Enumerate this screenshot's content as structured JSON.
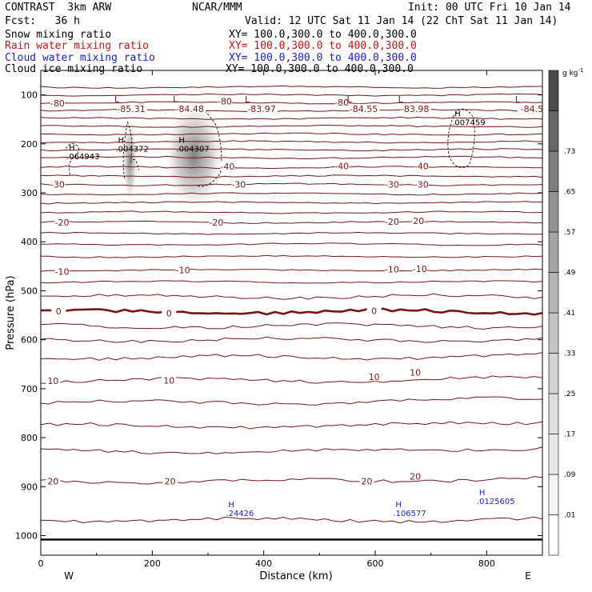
{
  "header": {
    "project": "CONTRAST",
    "model": "3km ARW",
    "center": "NCAR/MMM",
    "init": "Init: 00 UTC Fri 10 Jan 14",
    "fcst_label": "Fcst:",
    "fcst_value": "36 h",
    "valid": "Valid: 12 UTC Sat 11 Jan 14 (22 ChT Sat 11 Jan 14)"
  },
  "fields": [
    {
      "name": "Snow mixing ratio",
      "xy": "XY= 100.0,300.0 to 400.0,300.0",
      "color": "#000000"
    },
    {
      "name": "Rain water mixing ratio",
      "xy": "XY= 100.0,300.0 to 400.0,300.0",
      "color": "#d01010"
    },
    {
      "name": "Cloud water mixing ratio",
      "xy": "XY= 100.0,300.0 to 400.0,300.0",
      "color": "#1a1ad0"
    },
    {
      "name": "Cloud ice mixing ratio",
      "xy": "XY= 100.0,300.0 to 400.0,300.0",
      "color": "#000000"
    }
  ],
  "chart_data": {
    "type": "contour cross-section",
    "xlabel": "Distance (km)",
    "ylabel": "Pressure (hPa)",
    "xlim": [
      0,
      900
    ],
    "ylim": [
      1040,
      50
    ],
    "x_ticks": [
      0,
      200,
      400,
      600,
      800
    ],
    "y_ticks": [
      100,
      200,
      300,
      400,
      500,
      600,
      700,
      800,
      900,
      1000
    ],
    "x_end_labels": {
      "left": "W",
      "right": "E"
    },
    "colorbar": {
      "unit_label": "g kg",
      "unit_exp": "-1",
      "labels": [
        ".01",
        ".09",
        ".17",
        ".25",
        ".33",
        ".41",
        ".49",
        ".57",
        ".65",
        ".73"
      ],
      "shades": [
        "#ffffff",
        "#f4f4f4",
        "#e9e9e9",
        "#dedede",
        "#d3d3d3",
        "#c5c5c5",
        "#b5b5b5",
        "#a5a5a5",
        "#939393",
        "#7d7d7d",
        "#666666",
        "#4a4a4a"
      ]
    },
    "temperature_contours": {
      "color": "#7a1414",
      "zero_color": "#7a1414",
      "labels": [
        {
          "text": "-80",
          "x": 30,
          "p": 117
        },
        {
          "text": "-80",
          "x": 330,
          "p": 113
        },
        {
          "text": "-80",
          "x": 540,
          "p": 115
        },
        {
          "text": "-40",
          "x": 335,
          "p": 246
        },
        {
          "text": "-40",
          "x": 540,
          "p": 245
        },
        {
          "text": "-40",
          "x": 683,
          "p": 245
        },
        {
          "text": "-30",
          "x": 30,
          "p": 283
        },
        {
          "text": "-30",
          "x": 355,
          "p": 283
        },
        {
          "text": "-30",
          "x": 630,
          "p": 283
        },
        {
          "text": "-30",
          "x": 683,
          "p": 283
        },
        {
          "text": "-20",
          "x": 38,
          "p": 360
        },
        {
          "text": "-20",
          "x": 315,
          "p": 360
        },
        {
          "text": "-20",
          "x": 630,
          "p": 359
        },
        {
          "text": "-20",
          "x": 675,
          "p": 357
        },
        {
          "text": "-10",
          "x": 38,
          "p": 461
        },
        {
          "text": "-10",
          "x": 255,
          "p": 458
        },
        {
          "text": "-10",
          "x": 630,
          "p": 456
        },
        {
          "text": "-10",
          "x": 680,
          "p": 455
        },
        {
          "text": "0",
          "x": 32,
          "p": 542
        },
        {
          "text": "0",
          "x": 230,
          "p": 546
        },
        {
          "text": "0",
          "x": 598,
          "p": 541
        },
        {
          "text": "10",
          "x": 22,
          "p": 684
        },
        {
          "text": "10",
          "x": 230,
          "p": 683
        },
        {
          "text": "10",
          "x": 598,
          "p": 676
        },
        {
          "text": "10",
          "x": 672,
          "p": 667
        },
        {
          "text": "20",
          "x": 22,
          "p": 889
        },
        {
          "text": "20",
          "x": 232,
          "p": 889
        },
        {
          "text": "20",
          "x": 585,
          "p": 889
        },
        {
          "text": "20",
          "x": 672,
          "p": 879
        }
      ],
      "lows": [
        {
          "letter": "L",
          "value": "-85.31",
          "x": 168,
          "p": 89
        },
        {
          "letter": "L",
          "value": "-84.48",
          "x": 273,
          "p": 89
        },
        {
          "letter": "L",
          "value": "-83.97",
          "x": 402,
          "p": 89
        },
        {
          "letter": "L",
          "value": "-84.55",
          "x": 585,
          "p": 89
        },
        {
          "letter": "L",
          "value": "-83.98",
          "x": 677,
          "p": 89
        },
        {
          "letter": "L",
          "value": "-84.5",
          "x": 887,
          "p": 89
        }
      ]
    },
    "maxima": [
      {
        "letter": "H",
        "value": ".064943",
        "x": 72,
        "p": 230,
        "color": "#000000"
      },
      {
        "letter": "H",
        "value": ".004372",
        "x": 160,
        "p": 214,
        "color": "#000000"
      },
      {
        "letter": "H",
        "value": ".004307",
        "x": 269,
        "p": 214,
        "color": "#000000"
      },
      {
        "letter": "H",
        "value": ".007459",
        "x": 764,
        "p": 160,
        "color": "#000000"
      },
      {
        "letter": "H",
        "value": ".24426",
        "x": 358,
        "p": 958,
        "color": "#1a1ad0"
      },
      {
        "letter": "H",
        "value": ".106577",
        "x": 658,
        "p": 958,
        "color": "#1a1ad0"
      },
      {
        "letter": "H",
        "value": ".0125605",
        "x": 808,
        "p": 934,
        "color": "#1a1ad0"
      }
    ],
    "snow_shading": [
      {
        "x_center": 160,
        "p_center": 235,
        "x_halfwidth": 8,
        "p_halfheight": 75,
        "peak": 0.7
      },
      {
        "x_center": 275,
        "p_center": 225,
        "x_halfwidth": 32,
        "p_halfheight": 100,
        "peak": 0.75
      }
    ]
  }
}
